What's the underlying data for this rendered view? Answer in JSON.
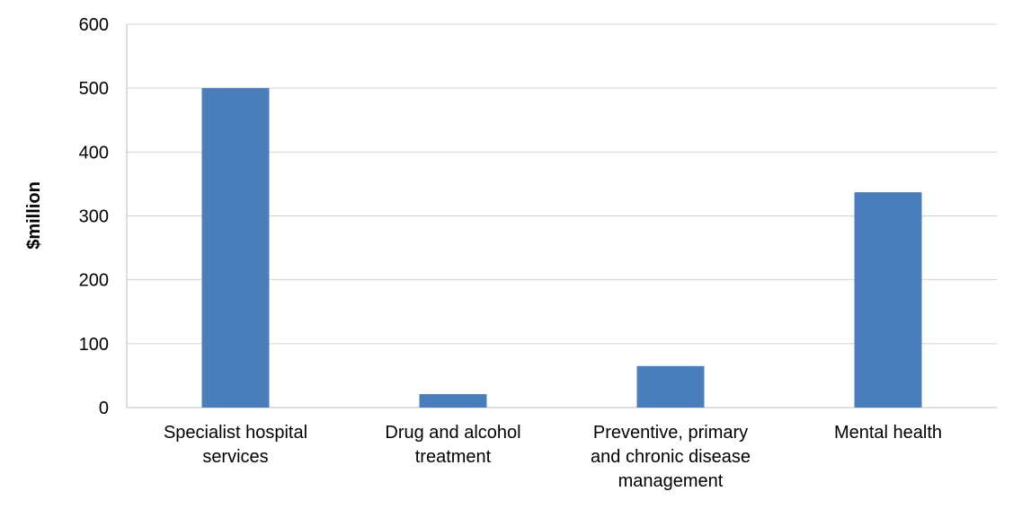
{
  "chart_data": {
    "type": "bar",
    "title": "",
    "xlabel": "",
    "ylabel": "$million",
    "ylim": [
      0,
      600
    ],
    "yticks": [
      0,
      100,
      200,
      300,
      400,
      500,
      600
    ],
    "grid": true,
    "categories": [
      [
        "Specialist hospital",
        "services"
      ],
      [
        "Drug and alcohol",
        "treatment"
      ],
      [
        "Preventive, primary",
        "and chronic disease",
        "management"
      ],
      [
        "Mental health"
      ]
    ],
    "values": [
      500,
      21,
      65,
      337
    ],
    "bar_color": "#4a7ebb"
  }
}
